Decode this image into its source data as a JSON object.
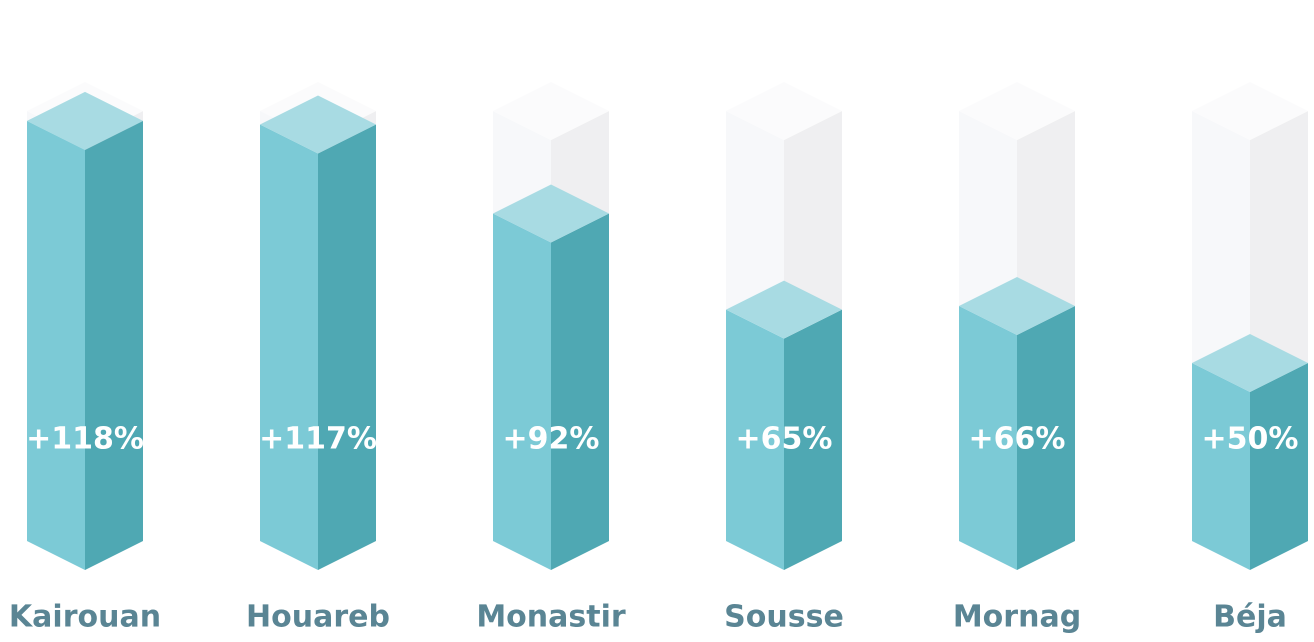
{
  "chart_data": {
    "type": "bar",
    "categories": [
      "Kairouan",
      "Houareb",
      "Monastir",
      "Sousse",
      "Mornag",
      "Béja"
    ],
    "values": [
      118,
      117,
      92,
      65,
      66,
      50
    ],
    "value_labels": [
      "+118%",
      "+117%",
      "+92%",
      "+65%",
      "+66%",
      "+50%"
    ],
    "color": "#7ccad6"
  }
}
